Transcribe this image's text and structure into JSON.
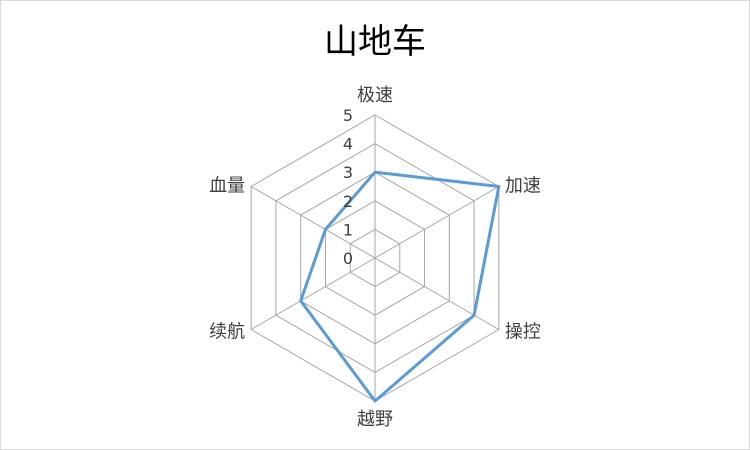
{
  "chart_data": {
    "type": "radar",
    "title": "山地车",
    "axes": [
      "极速",
      "加速",
      "操控",
      "越野",
      "续航",
      "血量"
    ],
    "ticks": [
      0,
      1,
      2,
      3,
      4,
      5
    ],
    "range": [
      0,
      5
    ],
    "grid": true,
    "series": [
      {
        "name": "",
        "values": [
          3,
          5,
          4,
          5,
          3,
          2
        ]
      }
    ]
  },
  "colors": {
    "series": "#5b9bd5",
    "grid": "#a6a6a6",
    "text": "#404040"
  }
}
